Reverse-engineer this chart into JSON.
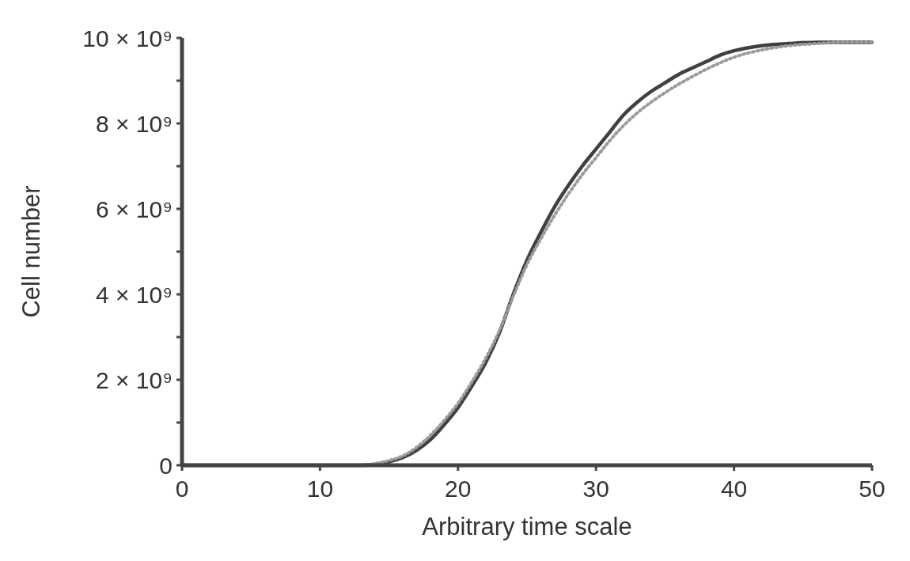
{
  "chart_data": {
    "type": "line",
    "xlabel": "Arbitrary time scale",
    "ylabel": "Cell number",
    "x": [
      0,
      5,
      10,
      13,
      14,
      15,
      16,
      17,
      18,
      19,
      20,
      21,
      22,
      23,
      24,
      25,
      26,
      27,
      28,
      29,
      30,
      31,
      32,
      33,
      34,
      35,
      36,
      37,
      38,
      39,
      40,
      42,
      44,
      46,
      48,
      50
    ],
    "series": [
      {
        "color": "#404040",
        "line_style": "solid",
        "values": [
          0,
          0,
          0,
          0,
          20000000.0,
          80000000.0,
          180000000.0,
          350000000.0,
          600000000.0,
          950000000.0,
          1350000000.0,
          1850000000.0,
          2400000000.0,
          3100000000.0,
          4000000000.0,
          4800000000.0,
          5450000000.0,
          6050000000.0,
          6550000000.0,
          7000000000.0,
          7400000000.0,
          7800000000.0,
          8200000000.0,
          8500000000.0,
          8750000000.0,
          8950000000.0,
          9150000000.0,
          9300000000.0,
          9450000000.0,
          9600000000.0,
          9700000000.0,
          9820000000.0,
          9870000000.0,
          9900000000.0,
          9900000000.0,
          9900000000.0
        ]
      },
      {
        "color": "#9a9a9a",
        "line_style": "dotted",
        "values": [
          0,
          0,
          0,
          0,
          40000000.0,
          110000000.0,
          220000000.0,
          420000000.0,
          700000000.0,
          1050000000.0,
          1450000000.0,
          1950000000.0,
          2500000000.0,
          3150000000.0,
          3950000000.0,
          4700000000.0,
          5300000000.0,
          5850000000.0,
          6350000000.0,
          6800000000.0,
          7200000000.0,
          7600000000.0,
          7950000000.0,
          8250000000.0,
          8500000000.0,
          8720000000.0,
          8920000000.0,
          9100000000.0,
          9270000000.0,
          9420000000.0,
          9550000000.0,
          9720000000.0,
          9820000000.0,
          9870000000.0,
          9900000000.0,
          9900000000.0
        ]
      }
    ],
    "xlim": [
      0,
      50
    ],
    "xticks": [
      0,
      10,
      20,
      30,
      40,
      50
    ],
    "ylim": [
      0,
      10000000000.0
    ],
    "yticks": [
      {
        "value": 0,
        "label": "0"
      },
      {
        "value": 1000000000.0,
        "label": null
      },
      {
        "value": 2000000000.0,
        "label": "2 × 10⁹"
      },
      {
        "value": 3000000000.0,
        "label": null
      },
      {
        "value": 4000000000.0,
        "label": "4 × 10⁹"
      },
      {
        "value": 5000000000.0,
        "label": null
      },
      {
        "value": 6000000000.0,
        "label": "6 × 10⁹"
      },
      {
        "value": 7000000000.0,
        "label": null
      },
      {
        "value": 8000000000.0,
        "label": "8 × 10⁹"
      },
      {
        "value": 9000000000.0,
        "label": null
      },
      {
        "value": 10000000000.0,
        "label": "10 × 10⁹"
      }
    ],
    "grid": false
  }
}
